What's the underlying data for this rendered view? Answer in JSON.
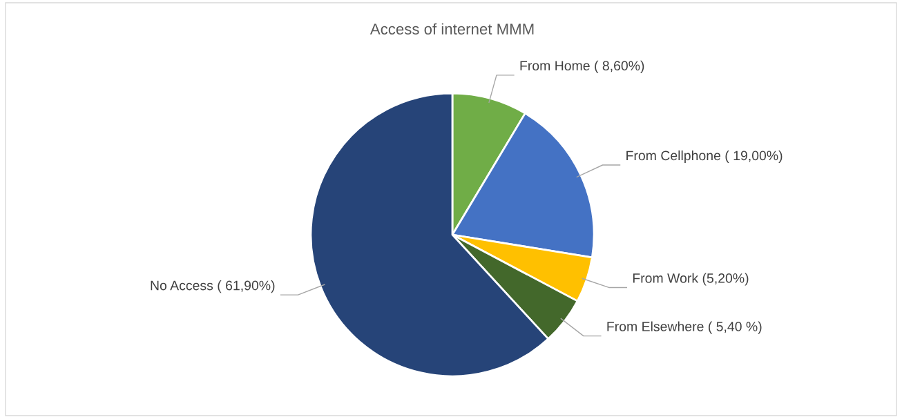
{
  "chart_data": {
    "type": "pie",
    "title": "Access of internet MMM",
    "categories": [
      "From Home",
      "From Cellphone",
      "From Work",
      "From Elsewhere",
      "No Access"
    ],
    "values": [
      8.6,
      19.0,
      5.2,
      5.4,
      61.9
    ],
    "value_labels": [
      "( 8,60%)",
      "( 19,00%)",
      "(5,20%)",
      "( 5,40 %)",
      "( 61,90%)"
    ],
    "colors": [
      "#70ad47",
      "#4472c4",
      "#ffc000",
      "#43682b",
      "#264478"
    ],
    "legend": false
  }
}
